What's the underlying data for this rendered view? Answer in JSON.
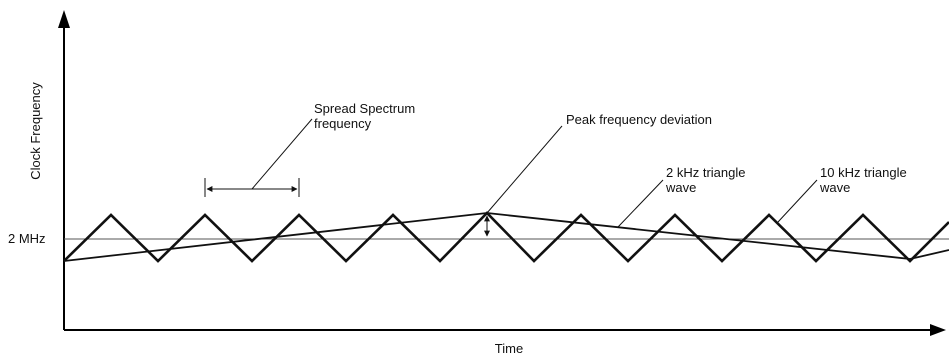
{
  "diagram": {
    "y_axis_label": "Clock Frequency",
    "x_axis_label": "Time",
    "reference_label": "2 MHz",
    "annotations": {
      "spread_spectrum": [
        "Spread Spectrum",
        "frequency"
      ],
      "peak_deviation": "Peak frequency deviation",
      "wave_2khz": [
        "2 kHz triangle",
        "wave"
      ],
      "wave_10khz": [
        "10 kHz triangle",
        "wave"
      ]
    },
    "colors": {
      "line": "#111111",
      "reference": "#555555",
      "background": "#ffffff"
    }
  }
}
